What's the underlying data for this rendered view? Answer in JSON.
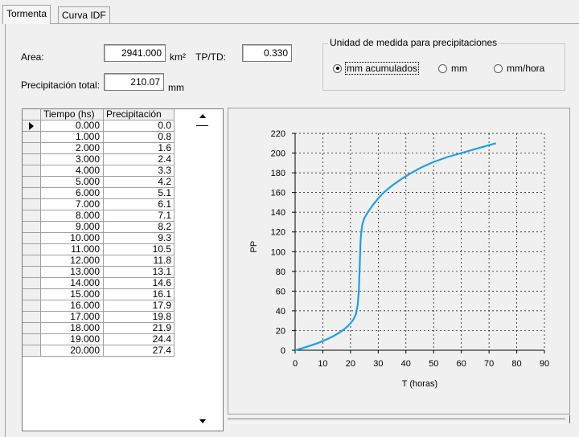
{
  "tabs": [
    {
      "label": "Tormenta",
      "active": true
    },
    {
      "label": "Curva IDF",
      "active": false
    }
  ],
  "form": {
    "area_label": "Area:",
    "area_value": "2941.000",
    "area_unit": "km²",
    "tptd_label": "TP/TD:",
    "tptd_value": "0.330",
    "precip_label": "Precipitación total:",
    "precip_value": "210.07",
    "precip_unit": "mm"
  },
  "units_group": {
    "title": "Unidad de medida para precipitaciones",
    "options": [
      {
        "label": "mm acumulados",
        "selected": true
      },
      {
        "label": "mm",
        "selected": false
      },
      {
        "label": "mm/hora",
        "selected": false
      }
    ]
  },
  "table": {
    "headers": [
      "Tiempo (hs)",
      "Precipitación"
    ],
    "current_row": 0,
    "rows": [
      [
        "0.000",
        "0.0"
      ],
      [
        "1.000",
        "0.8"
      ],
      [
        "2.000",
        "1.6"
      ],
      [
        "3.000",
        "2.4"
      ],
      [
        "4.000",
        "3.3"
      ],
      [
        "5.000",
        "4.2"
      ],
      [
        "6.000",
        "5.1"
      ],
      [
        "7.000",
        "6.1"
      ],
      [
        "8.000",
        "7.1"
      ],
      [
        "9.000",
        "8.2"
      ],
      [
        "10.000",
        "9.3"
      ],
      [
        "11.000",
        "10.5"
      ],
      [
        "12.000",
        "11.8"
      ],
      [
        "13.000",
        "13.1"
      ],
      [
        "14.000",
        "14.6"
      ],
      [
        "15.000",
        "16.1"
      ],
      [
        "16.000",
        "17.9"
      ],
      [
        "17.000",
        "19.8"
      ],
      [
        "18.000",
        "21.9"
      ],
      [
        "19.000",
        "24.4"
      ],
      [
        "20.000",
        "27.4"
      ]
    ]
  },
  "chart_data": {
    "type": "line",
    "title": "",
    "xlabel": "T (horas)",
    "ylabel": "PP",
    "xlim": [
      0,
      90
    ],
    "ylim": [
      0,
      220
    ],
    "xticks": [
      "0",
      "10",
      "20",
      "30",
      "40",
      "50",
      "60",
      "70",
      "80",
      "90"
    ],
    "yticks": [
      "0",
      "20",
      "40",
      "60",
      "80",
      "100",
      "120",
      "140",
      "160",
      "180",
      "200",
      "220"
    ],
    "grid": true,
    "line_color": "#1ca0e6",
    "series": [
      {
        "x": [
          0,
          2,
          4,
          6,
          8,
          10,
          12,
          14,
          16,
          18,
          19,
          20,
          21,
          22,
          22.6,
          23,
          23.3,
          23.6,
          23.9,
          24.3,
          25,
          26,
          27,
          28,
          30,
          32,
          35,
          38,
          42,
          46,
          50,
          55,
          60,
          65,
          70,
          72.5
        ],
        "y": [
          0,
          1.6,
          3.3,
          5.1,
          7.1,
          9.3,
          11.8,
          14.6,
          17.9,
          21.9,
          24.4,
          27.4,
          31,
          37,
          46,
          60,
          85,
          110,
          120,
          128,
          134,
          139,
          143,
          147,
          154,
          160,
          167,
          173,
          180,
          186,
          191,
          196,
          200,
          204,
          208,
          210
        ]
      }
    ]
  }
}
